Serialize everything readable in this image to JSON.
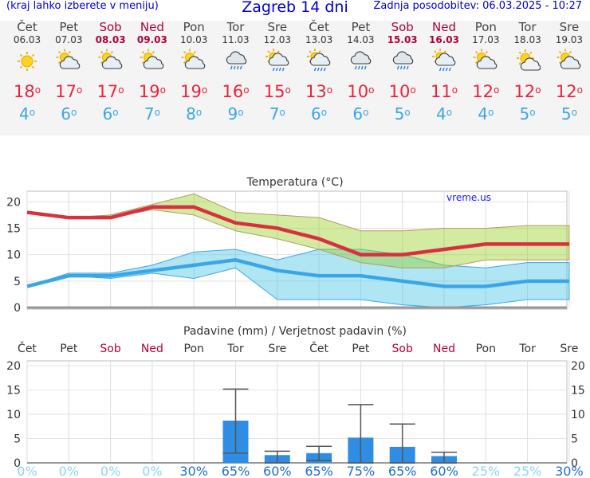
{
  "header": {
    "menu_hint": "(kraj lahko izberete v meniju)",
    "title": "Zagreb 14 dni",
    "updated": "Zadnja posodobitev: 06.03.2025 - 10:27"
  },
  "days": [
    {
      "name": "Čet",
      "date": "06.03",
      "weekend": false,
      "icon": "sun",
      "tmax": "18",
      "tmin": "4"
    },
    {
      "name": "Pet",
      "date": "07.03",
      "weekend": false,
      "icon": "partly-cloudy",
      "tmax": "17",
      "tmin": "6"
    },
    {
      "name": "Sob",
      "date": "08.03",
      "weekend": true,
      "icon": "partly-cloudy",
      "tmax": "17",
      "tmin": "6"
    },
    {
      "name": "Ned",
      "date": "09.03",
      "weekend": true,
      "icon": "partly-cloudy",
      "tmax": "19",
      "tmin": "7"
    },
    {
      "name": "Pon",
      "date": "10.03",
      "weekend": false,
      "icon": "partly-cloudy",
      "tmax": "19",
      "tmin": "8"
    },
    {
      "name": "Tor",
      "date": "11.03",
      "weekend": false,
      "icon": "rain-cloud",
      "tmax": "16",
      "tmin": "9"
    },
    {
      "name": "Sre",
      "date": "12.03",
      "weekend": false,
      "icon": "sun-rain",
      "tmax": "15",
      "tmin": "7"
    },
    {
      "name": "Čet",
      "date": "13.03",
      "weekend": false,
      "icon": "sun-rain",
      "tmax": "13",
      "tmin": "6"
    },
    {
      "name": "Pet",
      "date": "14.03",
      "weekend": false,
      "icon": "rain-cloud",
      "tmax": "10",
      "tmin": "6"
    },
    {
      "name": "Sob",
      "date": "15.03",
      "weekend": true,
      "icon": "rain-cloud",
      "tmax": "10",
      "tmin": "5"
    },
    {
      "name": "Ned",
      "date": "16.03",
      "weekend": true,
      "icon": "sun-rain",
      "tmax": "11",
      "tmin": "4"
    },
    {
      "name": "Pon",
      "date": "17.03",
      "weekend": false,
      "icon": "partly-cloudy",
      "tmax": "12",
      "tmin": "4"
    },
    {
      "name": "Tor",
      "date": "18.03",
      "weekend": false,
      "icon": "sun-cloud",
      "tmax": "12",
      "tmin": "5"
    },
    {
      "name": "Sre",
      "date": "19.03",
      "weekend": false,
      "icon": "partly-cloudy",
      "tmax": "12",
      "tmin": "5"
    }
  ],
  "degree_symbol": "o",
  "colors": {
    "max": "#e8243c",
    "min": "#3aa6e8",
    "weekend": "#b0003a",
    "bar": "#2f8de4",
    "title": "#0000cc"
  },
  "chart_data": [
    {
      "type": "line",
      "title": "Temperatura (°C)",
      "watermark": "vreme.us",
      "ylim": [
        0,
        22
      ],
      "yticks": [
        "0",
        "5",
        "10",
        "15",
        "20"
      ],
      "series": [
        {
          "name": "max",
          "values": [
            18,
            17,
            17,
            19,
            19,
            16,
            15,
            13,
            10,
            10,
            11,
            12,
            12,
            12
          ]
        },
        {
          "name": "min",
          "values": [
            4,
            6,
            6,
            7,
            8,
            9,
            7,
            6,
            6,
            5,
            4,
            4,
            5,
            5
          ]
        }
      ],
      "max_range_low": [
        18,
        17,
        17,
        18.5,
        17.5,
        14.5,
        13,
        11,
        8.5,
        7.5,
        7.5,
        9,
        9,
        9
      ],
      "max_range_high": [
        18,
        17,
        17.5,
        19.5,
        21.5,
        18,
        17.5,
        17,
        14.5,
        14.5,
        15,
        15,
        15.5,
        15.5
      ],
      "min_range_low": [
        4,
        6,
        5.5,
        6.5,
        5.5,
        7.5,
        1.5,
        1.5,
        1.5,
        0.5,
        0,
        0.5,
        1.5,
        1.5
      ],
      "min_range_high": [
        4,
        6.5,
        6.5,
        8,
        10.5,
        11,
        9,
        11,
        11,
        10,
        8,
        7.5,
        8.5,
        8.5
      ]
    },
    {
      "type": "bar",
      "title": "Padavine (mm) / Verjetnost padavin (%)",
      "categories": [
        "Čet",
        "Pet",
        "Sob",
        "Ned",
        "Pon",
        "Tor",
        "Sre",
        "Čet",
        "Pet",
        "Sob",
        "Ned",
        "Pon",
        "Tor",
        "Sre"
      ],
      "weekend": [
        false,
        false,
        true,
        true,
        false,
        false,
        false,
        false,
        false,
        true,
        true,
        false,
        false,
        false
      ],
      "ylim": [
        0,
        21
      ],
      "yticks": [
        "0",
        "5",
        "10",
        "15",
        "20"
      ],
      "values": [
        0,
        0,
        0,
        0,
        0,
        8.7,
        1.6,
        2,
        5.2,
        3.3,
        1.4,
        0,
        0,
        0
      ],
      "error_low": [
        0,
        0,
        0,
        0,
        0,
        2,
        0,
        0.5,
        0,
        0,
        0,
        0,
        0,
        0
      ],
      "error_high": [
        0,
        0,
        0,
        0,
        0,
        15.2,
        2.4,
        3.4,
        12,
        8,
        2.2,
        0,
        0,
        0
      ],
      "probability": [
        "0%",
        "0%",
        "0%",
        "0%",
        "30%",
        "65%",
        "60%",
        "65%",
        "75%",
        "65%",
        "60%",
        "25%",
        "25%",
        "30%"
      ]
    }
  ]
}
